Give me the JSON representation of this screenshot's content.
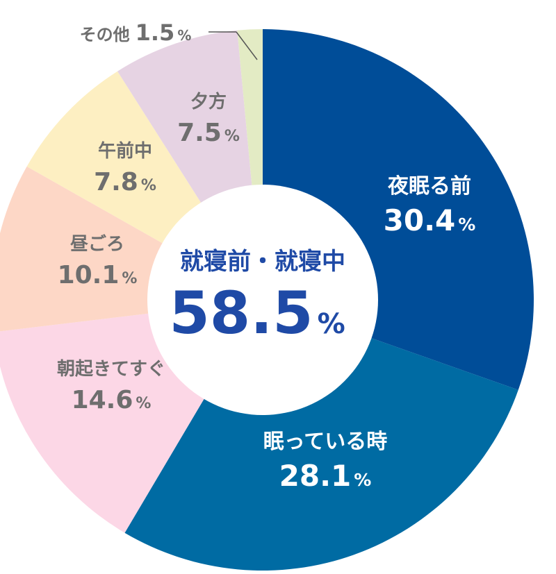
{
  "chart_data": {
    "type": "pie",
    "variant": "donut",
    "title": "",
    "center_label": "就寝前・就寝中",
    "center_value": "58.5",
    "center_unit": "%",
    "unit": "%",
    "slices": [
      {
        "name": "夜眠る前",
        "value": 30.4,
        "value_text": "30.4",
        "color": "#004d98",
        "text_color": "#ffffff"
      },
      {
        "name": "眠っている時",
        "value": 28.1,
        "value_text": "28.1",
        "color": "#006ba3",
        "text_color": "#ffffff"
      },
      {
        "name": "朝起きてすぐ",
        "value": 14.6,
        "value_text": "14.6",
        "color": "#fcd7e6",
        "text_color": "#6e6e6e"
      },
      {
        "name": "昼ごろ",
        "value": 10.1,
        "value_text": "10.1",
        "color": "#fdd7c6",
        "text_color": "#6e6e6e"
      },
      {
        "name": "午前中",
        "value": 7.8,
        "value_text": "7.8",
        "color": "#fdefc2",
        "text_color": "#6e6e6e"
      },
      {
        "name": "夕方",
        "value": 7.5,
        "value_text": "7.5",
        "color": "#e6d3e3",
        "text_color": "#6e6e6e"
      },
      {
        "name": "その他",
        "value": 1.5,
        "value_text": "1.5",
        "color": "#e3ebc4",
        "text_color": "#6e6e6e"
      }
    ],
    "colors": {
      "center_text": "#1f4aa6"
    }
  }
}
